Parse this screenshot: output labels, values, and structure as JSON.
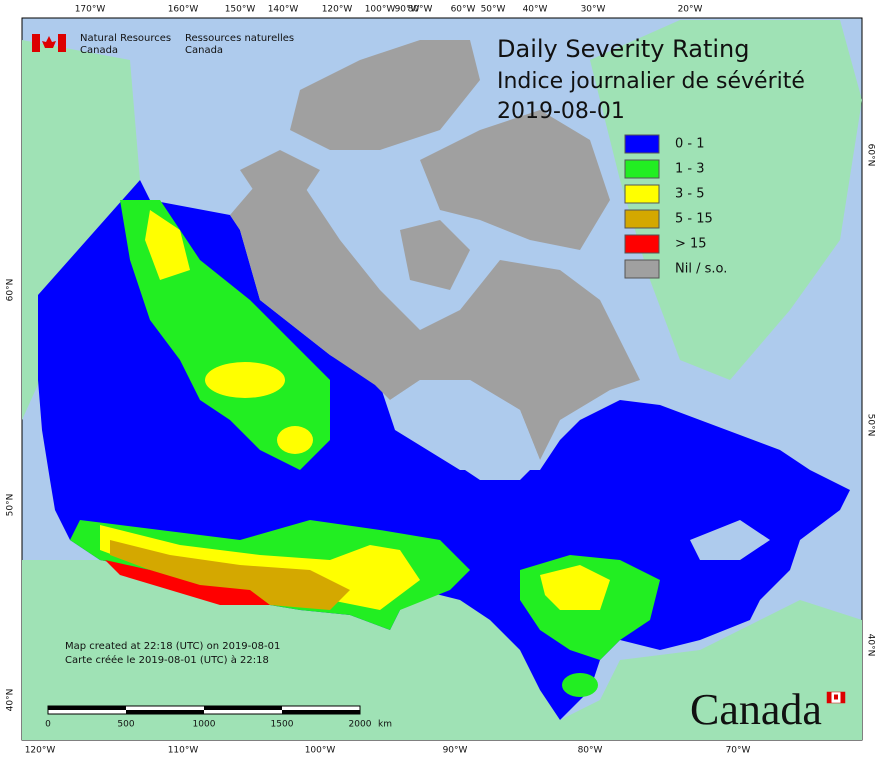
{
  "header": {
    "agency_en": [
      "Natural Resources",
      "Canada"
    ],
    "agency_fr": [
      "Ressources naturelles",
      "Canada"
    ]
  },
  "title": {
    "lines": [
      "Daily Severity Rating",
      "Indice journalier de sévérité",
      "2019-08-01"
    ]
  },
  "legend": {
    "items": [
      {
        "label": "0 - 1",
        "color": "#0000ff"
      },
      {
        "label": "1 - 3",
        "color": "#22ee22"
      },
      {
        "label": "3 - 5",
        "color": "#ffff00"
      },
      {
        "label": "5 - 15",
        "color": "#d4a800"
      },
      {
        "label": "> 15",
        "color": "#ff0000"
      },
      {
        "label": "Nil / s.o.",
        "color": "#a0a0a0"
      }
    ]
  },
  "graticule": {
    "top": [
      "170°W",
      "160°W",
      "150°W",
      "140°W",
      "120°W",
      "100°W",
      "90°W",
      "80°W",
      "60°W",
      "50°W",
      "40°W",
      "30°W",
      "20°W"
    ],
    "bottom": [
      "120°W",
      "110°W",
      "100°W",
      "90°W",
      "80°W",
      "70°W"
    ],
    "left": [
      "60°N",
      "50°N",
      "40°N"
    ],
    "right": [
      "60°N",
      "50°N",
      "40°N"
    ]
  },
  "scale": {
    "labels": [
      "0",
      "500",
      "1000",
      "1500",
      "2000"
    ],
    "unit": "km"
  },
  "footer": {
    "lines": [
      "Map created at 22:18 (UTC) on 2019-08-01",
      "Carte créée le 2019-08-01 (UTC) à 22:18"
    ]
  },
  "wordmark": "Canada"
}
